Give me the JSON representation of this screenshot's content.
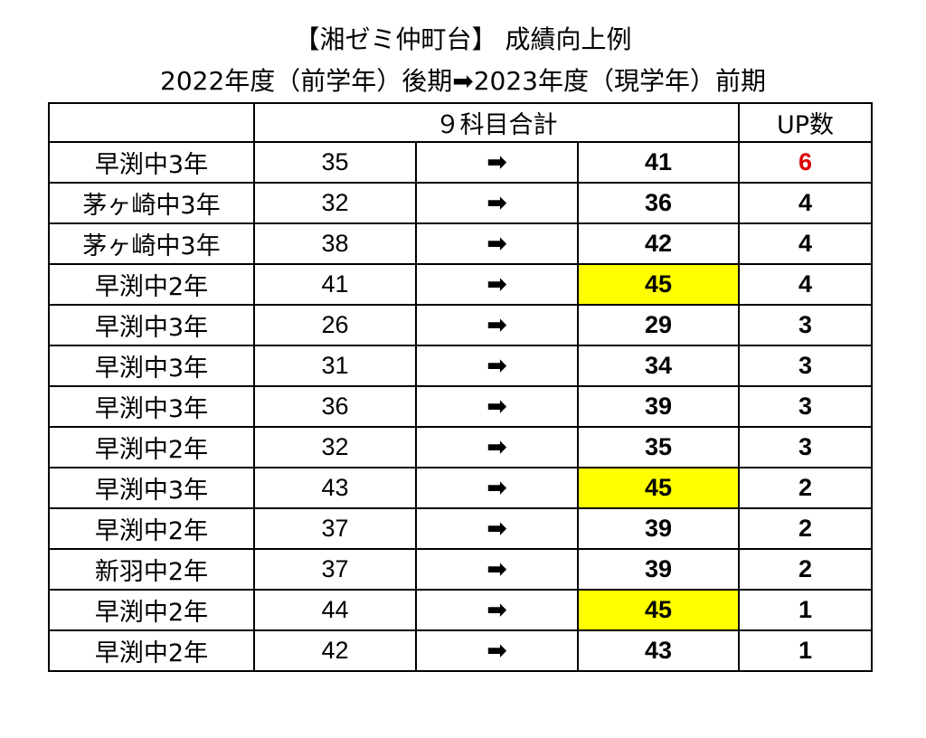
{
  "title_line1": "【湘ゼミ仲町台】 成績向上例",
  "title_line2": "2022年度（前学年）後期➡2023年度（現学年）前期",
  "table": {
    "header_total": "９科目合計",
    "header_up": "UP数",
    "arrow_symbol": "➡",
    "highlight_color": "#ffff00",
    "up_top_color": "#e00000",
    "rows": [
      {
        "school": "早渕中3年",
        "before": "35",
        "arrow": "➡",
        "after": "41",
        "up": "6",
        "highlight": false,
        "up_color": "#e00000"
      },
      {
        "school": "茅ヶ崎中3年",
        "before": "32",
        "arrow": "➡",
        "after": "36",
        "up": "4",
        "highlight": false,
        "up_color": "#000000"
      },
      {
        "school": "茅ヶ崎中3年",
        "before": "38",
        "arrow": "➡",
        "after": "42",
        "up": "4",
        "highlight": false,
        "up_color": "#000000"
      },
      {
        "school": "早渕中2年",
        "before": "41",
        "arrow": "➡",
        "after": "45",
        "up": "4",
        "highlight": true,
        "up_color": "#000000"
      },
      {
        "school": "早渕中3年",
        "before": "26",
        "arrow": "➡",
        "after": "29",
        "up": "3",
        "highlight": false,
        "up_color": "#000000"
      },
      {
        "school": "早渕中3年",
        "before": "31",
        "arrow": "➡",
        "after": "34",
        "up": "3",
        "highlight": false,
        "up_color": "#000000"
      },
      {
        "school": "早渕中3年",
        "before": "36",
        "arrow": "➡",
        "after": "39",
        "up": "3",
        "highlight": false,
        "up_color": "#000000"
      },
      {
        "school": "早渕中2年",
        "before": "32",
        "arrow": "➡",
        "after": "35",
        "up": "3",
        "highlight": false,
        "up_color": "#000000"
      },
      {
        "school": "早渕中3年",
        "before": "43",
        "arrow": "➡",
        "after": "45",
        "up": "2",
        "highlight": true,
        "up_color": "#000000"
      },
      {
        "school": "早渕中2年",
        "before": "37",
        "arrow": "➡",
        "after": "39",
        "up": "2",
        "highlight": false,
        "up_color": "#000000"
      },
      {
        "school": "新羽中2年",
        "before": "37",
        "arrow": "➡",
        "after": "39",
        "up": "2",
        "highlight": false,
        "up_color": "#000000"
      },
      {
        "school": "早渕中2年",
        "before": "44",
        "arrow": "➡",
        "after": "45",
        "up": "1",
        "highlight": true,
        "up_color": "#000000"
      },
      {
        "school": "早渕中2年",
        "before": "42",
        "arrow": "➡",
        "after": "43",
        "up": "1",
        "highlight": false,
        "up_color": "#000000"
      }
    ]
  }
}
